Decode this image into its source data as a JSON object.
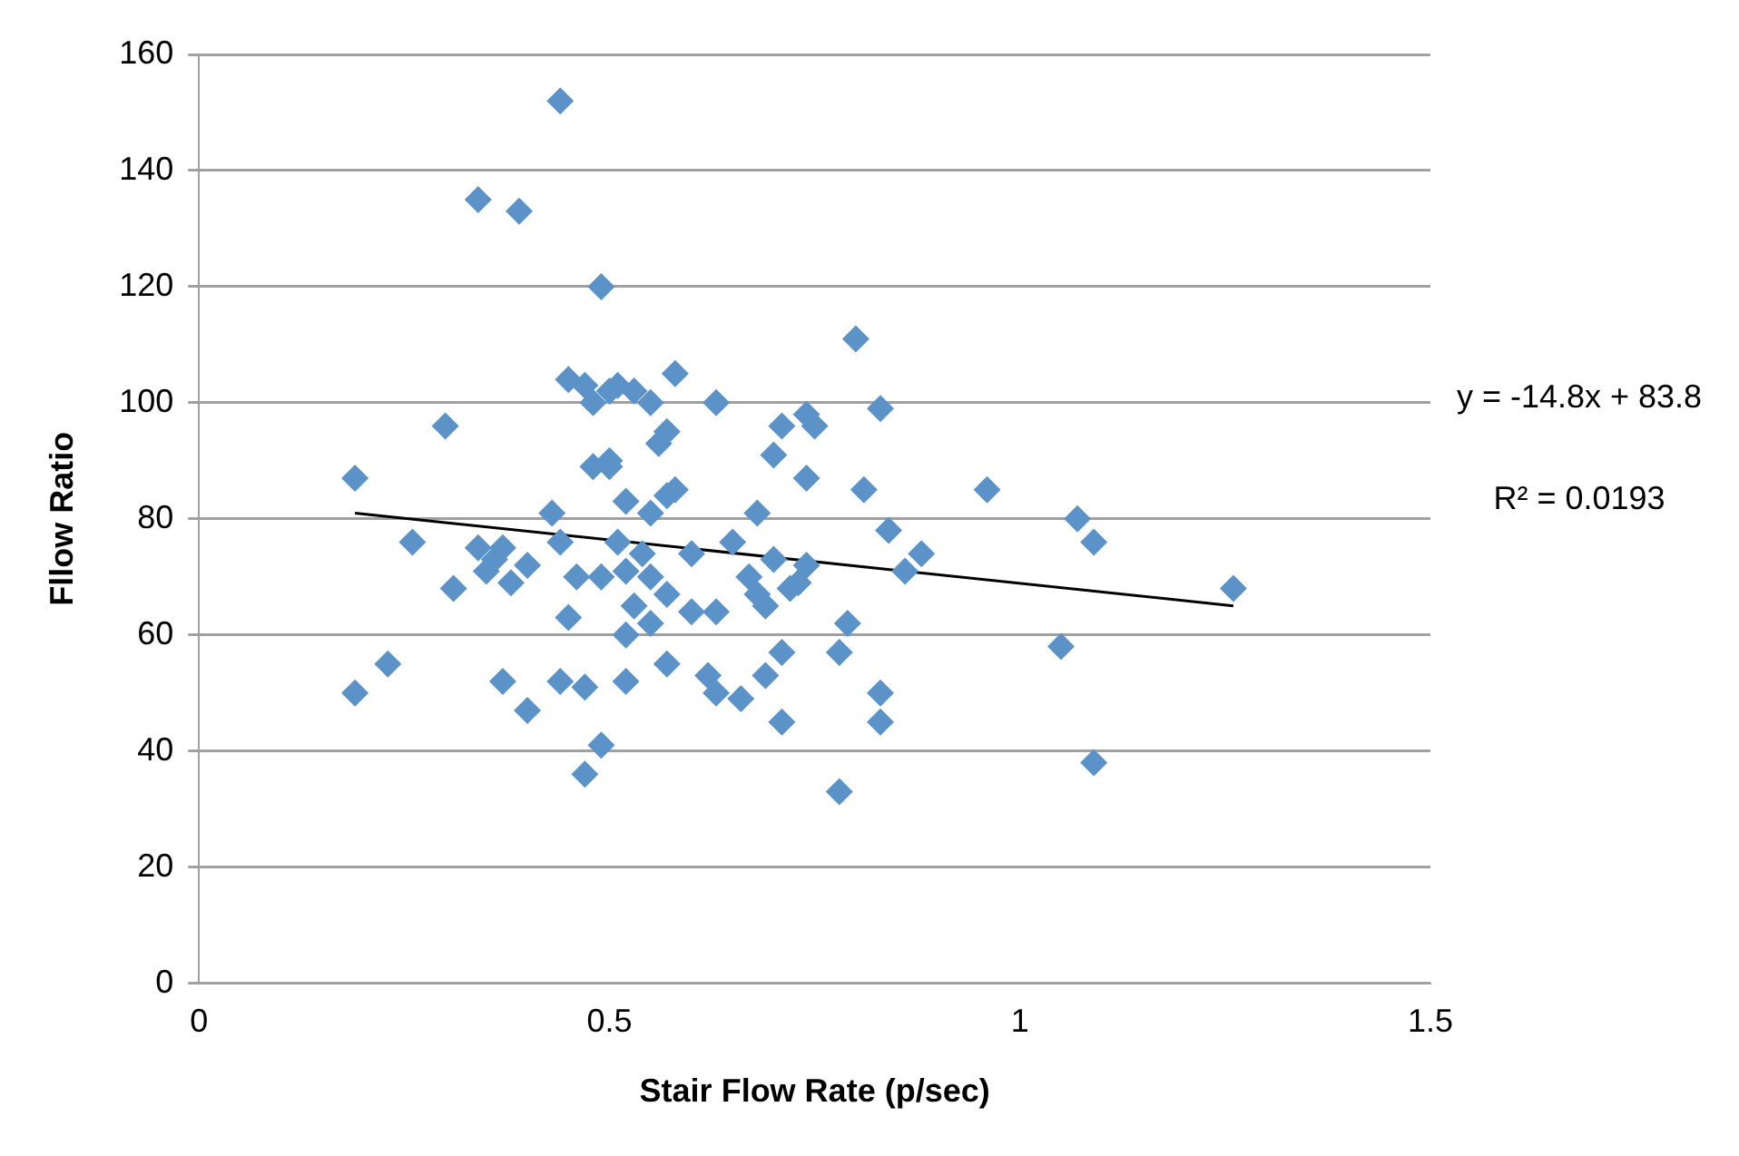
{
  "chart_data": {
    "type": "scatter",
    "xlabel": "Stair Flow Rate (p/sec)",
    "ylabel": "Fllow Ratio",
    "xlim": [
      0,
      1.5
    ],
    "xticks": [
      0,
      0.5,
      1,
      1.5
    ],
    "ylim": [
      0,
      160
    ],
    "yticks": [
      0,
      20,
      40,
      60,
      80,
      100,
      120,
      140,
      160
    ],
    "grid": "y",
    "legend": false,
    "marker": "diamond",
    "annotations": [
      "y = -14.8x + 83.8",
      "R² = 0.0193"
    ],
    "series": [
      {
        "color": "#5b93c9",
        "x": [
          0.19,
          0.19,
          0.23,
          0.26,
          0.3,
          0.31,
          0.34,
          0.35,
          0.36,
          0.37,
          0.4,
          0.38,
          0.37,
          0.4,
          0.34,
          0.39,
          0.44,
          0.49,
          0.43,
          0.44,
          0.45,
          0.47,
          0.48,
          0.5,
          0.51,
          0.53,
          0.55,
          0.58,
          0.5,
          0.48,
          0.5,
          0.46,
          0.45,
          0.49,
          0.51,
          0.52,
          0.52,
          0.54,
          0.55,
          0.53,
          0.52,
          0.55,
          0.57,
          0.57,
          0.58,
          0.56,
          0.57,
          0.55,
          0.44,
          0.47,
          0.49,
          0.47,
          0.52,
          0.57,
          0.6,
          0.6,
          0.63,
          0.63,
          0.62,
          0.63,
          0.66,
          0.65,
          0.67,
          0.68,
          0.68,
          0.69,
          0.7,
          0.71,
          0.69,
          0.71,
          0.7,
          0.71,
          0.74,
          0.75,
          0.74,
          0.73,
          0.74,
          0.72,
          0.78,
          0.79,
          0.78,
          0.8,
          0.83,
          0.81,
          0.84,
          0.86,
          0.88,
          0.83,
          0.83,
          0.96,
          1.05,
          1.07,
          1.09,
          1.09,
          1.26
        ],
        "values": [
          87,
          50,
          55,
          76,
          96,
          68,
          75,
          71,
          73,
          75,
          72,
          69,
          52,
          47,
          135,
          133,
          152,
          120,
          81,
          76,
          104,
          103,
          100,
          102,
          103,
          102,
          100,
          105,
          89,
          89,
          90,
          70,
          63,
          70,
          76,
          83,
          71,
          74,
          70,
          65,
          60,
          62,
          67,
          84,
          85,
          93,
          95,
          81,
          52,
          51,
          41,
          36,
          52,
          55,
          64,
          74,
          64,
          100,
          53,
          50,
          49,
          76,
          70,
          81,
          67,
          65,
          73,
          57,
          53,
          45,
          91,
          96,
          98,
          96,
          87,
          69,
          72,
          68,
          57,
          62,
          33,
          111,
          99,
          85,
          78,
          71,
          74,
          50,
          45,
          85,
          58,
          80,
          76,
          38,
          68
        ]
      },
      {
        "type": "line",
        "color": "#000000",
        "marker": "none",
        "x": [
          0.19,
          1.26
        ],
        "values": [
          81,
          65
        ]
      }
    ]
  }
}
